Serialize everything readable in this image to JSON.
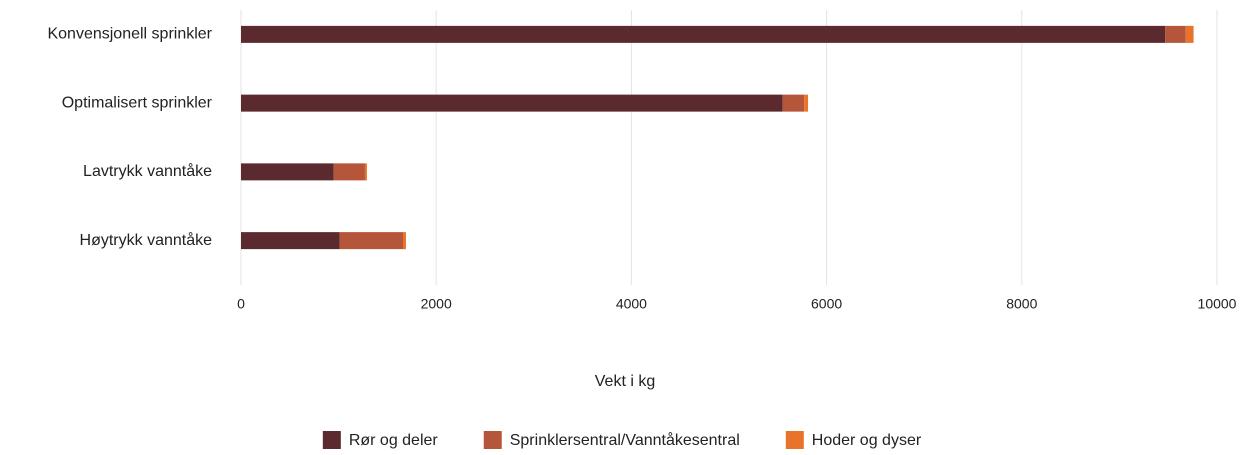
{
  "chart_data": {
    "type": "stacked-barh",
    "categories": [
      "Konvensjonell sprinkler",
      "Optimalisert sprinkler",
      "Lavtrykk vanntåke",
      "Høytrykk vanntåke"
    ],
    "series": [
      {
        "name": "Rør og deler",
        "color": "#5a2a2e",
        "values": [
          9470,
          5550,
          950,
          1010
        ]
      },
      {
        "name": "Sprinklersentral/Vanntåkesentral",
        "color": "#b5563a",
        "values": [
          210,
          220,
          320,
          650
        ]
      },
      {
        "name": "Hoder og dyser",
        "color": "#e8732a",
        "values": [
          80,
          40,
          20,
          30
        ]
      }
    ],
    "xlabel": "Vekt i kg",
    "xlim": [
      0,
      10000
    ],
    "xticks": [
      0,
      2000,
      4000,
      6000,
      8000,
      10000
    ],
    "grid": true,
    "legend": "bottom"
  }
}
